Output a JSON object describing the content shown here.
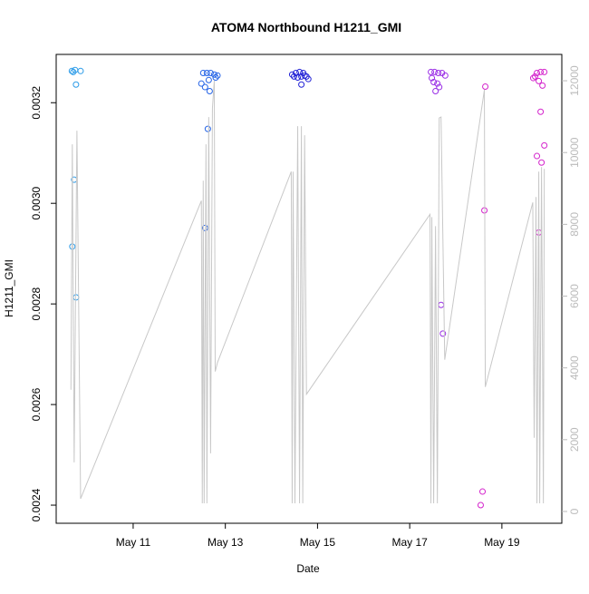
{
  "chart_data": {
    "type": "scatter",
    "title": "ATOM4 Northbound H1211_GMI",
    "x_label": "Date",
    "y_label": "H1211_GMI",
    "xlim": [
      9.33,
      20.3
    ],
    "ylim": [
      0.002364,
      0.003296
    ],
    "y2lim": [
      -329,
      12734
    ],
    "xticks": [
      {
        "value": 11,
        "label": "May 11"
      },
      {
        "value": 13,
        "label": "May 13"
      },
      {
        "value": 15,
        "label": "May 15"
      },
      {
        "value": 17,
        "label": "May 17"
      },
      {
        "value": 19,
        "label": "May 19"
      }
    ],
    "yticks": [
      0.0024,
      0.0026,
      0.0028,
      {
        "value": 0.003,
        "label": "0.0030"
      },
      0.0032
    ],
    "y2ticks": [
      0,
      2000,
      4000,
      6000,
      8000,
      10000,
      12000
    ],
    "series": [
      {
        "type": "scatter",
        "color": "#2b9be8",
        "x": [
          9.67,
          9.74,
          9.86,
          9.7,
          9.76,
          9.72,
          9.68,
          9.76
        ],
        "values": [
          0.003263,
          0.003265,
          0.003263,
          0.003261,
          0.003236,
          0.003047,
          0.002914,
          0.002813
        ]
      },
      {
        "type": "scatter",
        "color": "#2463e6",
        "x": [
          12.52,
          12.6,
          12.68,
          12.76,
          12.83,
          12.79,
          12.48,
          12.56,
          12.64,
          12.66,
          12.62,
          12.56
        ],
        "values": [
          0.003259,
          0.003259,
          0.003259,
          0.003256,
          0.003254,
          0.00325,
          0.003238,
          0.003231,
          0.003245,
          0.003223,
          0.003148,
          0.002951
        ]
      },
      {
        "type": "scatter",
        "color": "#2323d6",
        "x": [
          14.45,
          14.53,
          14.61,
          14.69,
          14.76,
          14.49,
          14.57,
          14.65,
          14.72,
          14.8,
          14.65
        ],
        "values": [
          0.003256,
          0.003259,
          0.003261,
          0.003259,
          0.003252,
          0.003252,
          0.00325,
          0.003252,
          0.003254,
          0.003247,
          0.003236
        ]
      },
      {
        "type": "scatter",
        "color": "#9a2ee6",
        "x": [
          17.46,
          17.54,
          17.62,
          17.7,
          17.77,
          17.48,
          17.52,
          17.6,
          17.64,
          17.56,
          17.68,
          17.72
        ],
        "values": [
          0.003261,
          0.003261,
          0.003259,
          0.003259,
          0.003254,
          0.003249,
          0.003241,
          0.003238,
          0.003231,
          0.003223,
          0.002798,
          0.002741
        ]
      },
      {
        "type": "scatter",
        "color": "#d424cc",
        "x": [
          18.64,
          18.62,
          18.58,
          18.54,
          19.68,
          19.76,
          19.84,
          19.92,
          19.8,
          19.88,
          19.72,
          19.84,
          19.92,
          19.76,
          19.86,
          19.8
        ],
        "values": [
          0.003232,
          0.002986,
          0.002427,
          0.0024,
          0.003249,
          0.003259,
          0.003261,
          0.003261,
          0.003243,
          0.003234,
          0.003252,
          0.003182,
          0.003115,
          0.003094,
          0.003081,
          0.002942
        ]
      },
      {
        "type": "line",
        "axis": "y2",
        "color": "#c8c8c8",
        "x": [
          9.65,
          9.68,
          9.72,
          9.78,
          9.86,
          12.48,
          12.5,
          12.52,
          12.54,
          12.58,
          12.6,
          12.64,
          12.68,
          12.72,
          12.76,
          12.78,
          12.83,
          14.43,
          14.45,
          14.47,
          14.51,
          14.57,
          14.61,
          14.65,
          14.68,
          14.72,
          14.76,
          17.44,
          17.46,
          17.48,
          17.52,
          17.56,
          17.6,
          17.64,
          17.68,
          17.76,
          18.62,
          18.64,
          19.67,
          19.7,
          19.74,
          19.76,
          19.8,
          19.82,
          19.86,
          19.9,
          19.92
        ],
        "values": [
          3393,
          10228,
          1367,
          10608,
          354,
          8659,
          228,
          9215,
          228,
          10228,
          228,
          10988,
          1620,
          11241,
          12000,
          3899,
          4152,
          9469,
          228,
          9469,
          228,
          10735,
          228,
          10735,
          228,
          10482,
          3266,
          8279,
          228,
          8203,
          228,
          7950,
          228,
          10963,
          10988,
          4228,
          11747,
          3469,
          8608,
          2051,
          8760,
          228,
          9469,
          228,
          9596,
          228,
          9545
        ]
      }
    ]
  }
}
